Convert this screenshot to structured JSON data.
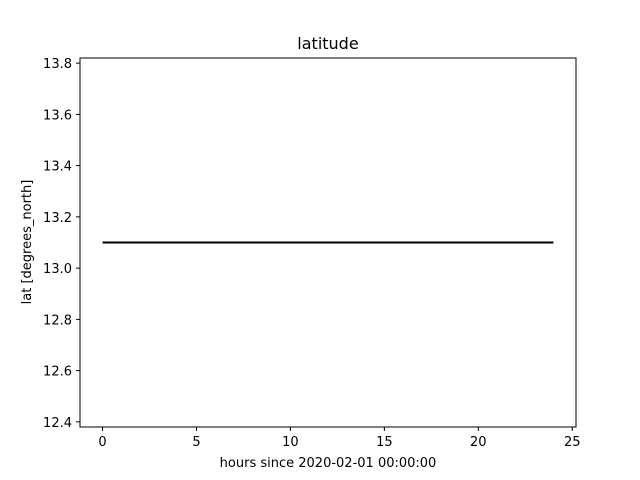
{
  "chart_data": {
    "type": "line",
    "title": "latitude",
    "xlabel": "hours since 2020-02-01 00:00:00",
    "ylabel": "lat [degrees_north]",
    "xlim": [
      -1.2,
      25.2
    ],
    "ylim": [
      12.38,
      13.82
    ],
    "xticks": [
      0,
      5,
      10,
      15,
      20,
      25
    ],
    "yticks": [
      12.4,
      12.6,
      12.8,
      13.0,
      13.2,
      13.4,
      13.6,
      13.8
    ],
    "ytick_labels": [
      "12.4",
      "12.6",
      "12.8",
      "13.0",
      "13.2",
      "13.4",
      "13.6",
      "13.8"
    ],
    "grid": false,
    "series": [
      {
        "color": "#000000",
        "x": [
          0,
          24
        ],
        "y": [
          13.1,
          13.1
        ]
      }
    ]
  }
}
